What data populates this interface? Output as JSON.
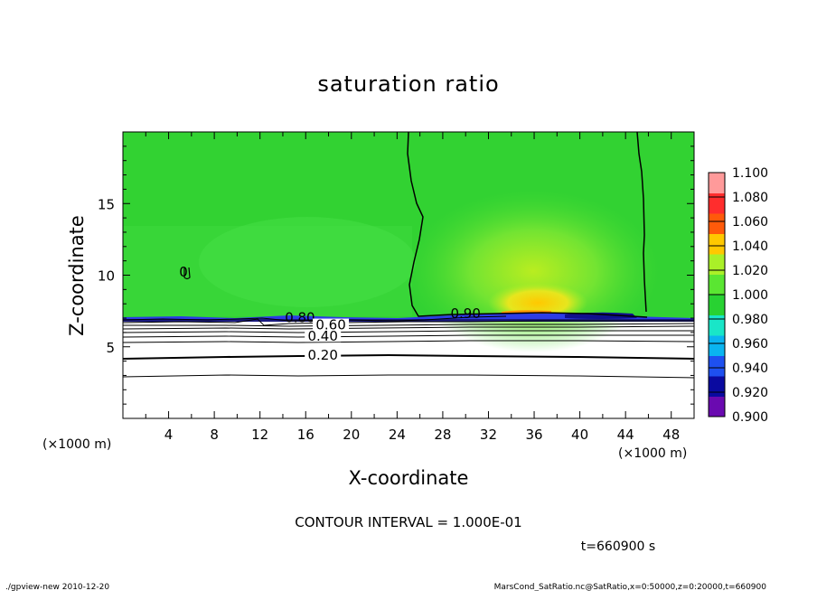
{
  "chart_data": {
    "type": "heatmap",
    "title": "saturation ratio",
    "xlabel": "X-coordinate",
    "ylabel": "Z-coordinate",
    "x_unit_left": "(×1000 m)",
    "x_unit_right": "(×1000 m)",
    "xlim": [
      0,
      50
    ],
    "ylim": [
      0,
      20
    ],
    "x_ticks": [
      4,
      8,
      12,
      16,
      20,
      24,
      28,
      32,
      36,
      40,
      44,
      48
    ],
    "y_ticks": [
      5,
      10,
      15
    ],
    "colorbar": {
      "levels": [
        0.9,
        0.92,
        0.94,
        0.96,
        0.98,
        1.0,
        1.02,
        1.04,
        1.06,
        1.08,
        1.1
      ],
      "labels": [
        "0.900",
        "0.920",
        "0.940",
        "0.960",
        "0.980",
        "1.000",
        "1.020",
        "1.040",
        "1.060",
        "1.080",
        "1.100"
      ],
      "colors": [
        "#6a0ab0",
        "#0a0aa0",
        "#1e50f0",
        "#0ab4f0",
        "#19e6c8",
        "#28d232",
        "#5ae632",
        "#aaf028",
        "#ffc800",
        "#ff5a0a",
        "#ff2d2d",
        "#ff9a9a"
      ]
    },
    "contour_labels": [
      {
        "x": 15.5,
        "z": 6.9,
        "text": "0.80"
      },
      {
        "x": 18.2,
        "z": 6.4,
        "text": "0.60"
      },
      {
        "x": 17.5,
        "z": 5.6,
        "text": "0.40"
      },
      {
        "x": 17.5,
        "z": 4.3,
        "text": "0.20"
      },
      {
        "x": 30.0,
        "z": 7.2,
        "text": "0.90"
      },
      {
        "x": 5.3,
        "z": 10.1,
        "text": "0"
      }
    ],
    "contour_levels_lower": [
      0.1,
      0.2,
      0.3,
      0.4,
      0.5,
      0.6,
      0.7,
      0.8,
      0.9
    ],
    "cloud_layer_base_z": 7.0,
    "supersaturation_max": {
      "x": 36,
      "z": 7.3,
      "value": 1.04
    },
    "subsaturation_min": {
      "x": 43,
      "z": 7.0,
      "value": 0.92
    },
    "contour_interval_text": "CONTOUR INTERVAL = 1.000E-01",
    "time_text": "t=660900 s"
  },
  "footer": {
    "left": "./gpview-new   2010-12-20",
    "right": "MarsCond_SatRatio.nc@SatRatio,x=0:50000,z=0:20000,t=660900"
  }
}
